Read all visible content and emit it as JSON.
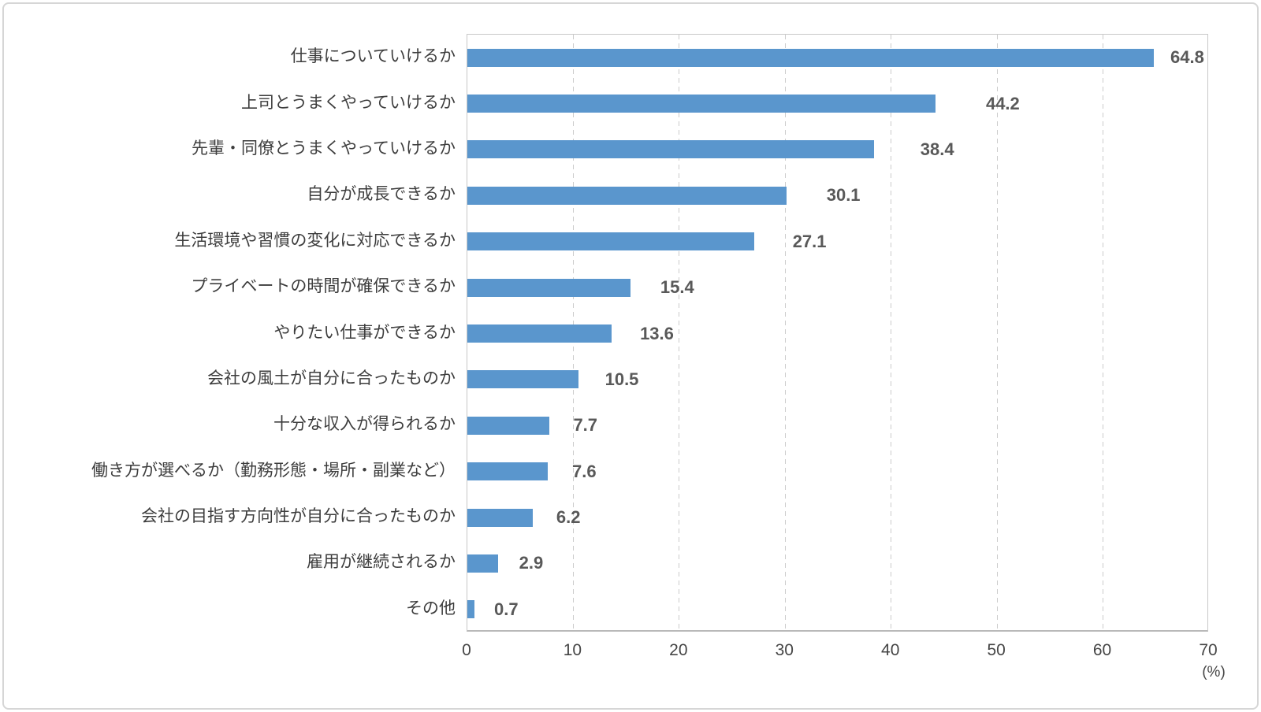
{
  "chart_data": {
    "type": "bar",
    "orientation": "horizontal",
    "title": "",
    "xlabel": "",
    "ylabel": "",
    "xlabel_unit": "(%)",
    "xlim": [
      0,
      70
    ],
    "xticks": [
      0,
      10,
      20,
      30,
      40,
      50,
      60,
      70
    ],
    "grid": "vertical-dashed",
    "legend": "none",
    "categories": [
      "仕事についていけるか",
      "上司とうまくやっていけるか",
      "先輩・同僚とうまくやっていけるか",
      "自分が成長できるか",
      "生活環境や習慣の変化に対応できるか",
      "プライベートの時間が確保できるか",
      "やりたい仕事ができるか",
      "会社の風土が自分に合ったものか",
      "十分な収入が得られるか",
      "働き方が選べるか（勤務形態・場所・副業など）",
      "会社の目指す方向性が自分に合ったものか",
      "雇用が継続されるか",
      "その他"
    ],
    "values": [
      64.8,
      44.2,
      38.4,
      30.1,
      27.1,
      15.4,
      13.6,
      10.5,
      7.7,
      7.6,
      6.2,
      2.9,
      0.7
    ],
    "colors": {
      "bar": "#5a96cd",
      "value_label": "#595959",
      "category_label": "#3d3d3d",
      "tick_label": "#454545",
      "gridline": "#cbcbcb",
      "plot_border": "#c8c8c8",
      "axis_line": "#b9b9b9",
      "outer_frame": "#d6d6d6"
    }
  }
}
